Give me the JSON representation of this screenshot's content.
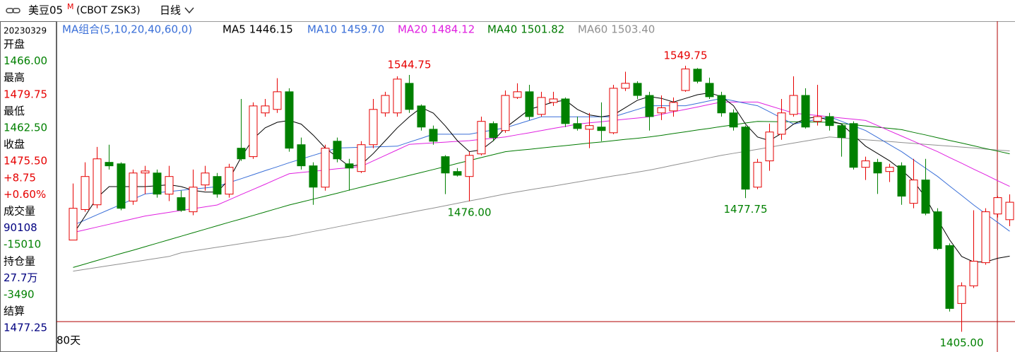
{
  "header": {
    "symbol": "美豆05",
    "flag": "M",
    "code": "(CBOT ZSK3)",
    "period": "日线"
  },
  "info_panel": {
    "date": "20230329",
    "lines": [
      {
        "text": "开盘",
        "color": "#000000"
      },
      {
        "text": "1466.00",
        "color": "#008000"
      },
      {
        "text": "最高",
        "color": "#000000"
      },
      {
        "text": "1479.75",
        "color": "#e60000"
      },
      {
        "text": "最低",
        "color": "#000000"
      },
      {
        "text": "1462.50",
        "color": "#008000"
      },
      {
        "text": "收盘",
        "color": "#000000"
      },
      {
        "text": "1475.50",
        "color": "#e60000"
      },
      {
        "text": "+8.75",
        "color": "#e60000"
      },
      {
        "text": "+0.60%",
        "color": "#e60000"
      },
      {
        "text": "成交量",
        "color": "#000000"
      },
      {
        "text": "90108",
        "color": "#000080"
      },
      {
        "text": "-15010",
        "color": "#008000"
      },
      {
        "text": "持仓量",
        "color": "#000000"
      },
      {
        "text": "27.7万",
        "color": "#000080"
      },
      {
        "text": "-3490",
        "color": "#008000"
      },
      {
        "text": "结算",
        "color": "#000000"
      },
      {
        "text": "1477.25",
        "color": "#000080"
      }
    ]
  },
  "chart_data": {
    "type": "candlestick",
    "ma_legend_title": "MA组合(5,10,20,40,60,0)",
    "range_label": "80天",
    "ylim": [
      1394,
      1574
    ],
    "up_color": "#e60000",
    "down_color": "#008000",
    "open": [
      1454.9,
      1471.5,
      1474.1,
      1497.2,
      1496.4,
      1476.1,
      1491.4,
      1491.4,
      1479.9,
      1478,
      1470.3,
      1484.9,
      1489.5,
      1479.9,
      1504.9,
      1500.3,
      1524.1,
      1526,
      1535.6,
      1506.8,
      1495.3,
      1483.7,
      1508.7,
      1496.4,
      1492.2,
      1506.8,
      1524.1,
      1524.1,
      1540.2,
      1527.9,
      1515.2,
      1500.3,
      1492.2,
      1489.5,
      1501.8,
      1518.3,
      1514.5,
      1532.5,
      1535.6,
      1523.3,
      1529.8,
      1531.7,
      1518.3,
      1515.2,
      1516.4,
      1513.3,
      1537.5,
      1540.2,
      1533.6,
      1524.1,
      1525.2,
      1536.3,
      1547.9,
      1540.2,
      1533.6,
      1524.1,
      1516.4,
      1483.7,
      1498,
      1512.5,
      1523.3,
      1533.6,
      1519.5,
      1522.1,
      1517.2,
      1518.3,
      1494.5,
      1497.2,
      1492.2,
      1495.3,
      1474.9,
      1487.6,
      1470.3,
      1451.9,
      1420.4,
      1430,
      1442.6,
      1469.1,
      1466
    ],
    "high": [
      1485.7,
      1497.2,
      1505.6,
      1506.8,
      1497.2,
      1493.3,
      1495.3,
      1493.3,
      1495.3,
      1481.8,
      1493.3,
      1495.3,
      1491.4,
      1496.4,
      1531.7,
      1529.8,
      1531.7,
      1543,
      1537.5,
      1510.7,
      1497.2,
      1506.8,
      1510.7,
      1499.1,
      1508.7,
      1531.7,
      1535.6,
      1544,
      1544.75,
      1528.7,
      1517.2,
      1501.1,
      1494.1,
      1503,
      1522.1,
      1519.5,
      1536.3,
      1540.2,
      1539.4,
      1535.6,
      1535.6,
      1532.5,
      1522.1,
      1524.1,
      1529.8,
      1539.4,
      1546.5,
      1541.3,
      1535.6,
      1533.6,
      1532.5,
      1549.75,
      1548.5,
      1543.3,
      1535.6,
      1526,
      1517.2,
      1499.1,
      1518.3,
      1531.7,
      1544,
      1537.5,
      1539.4,
      1524.1,
      1518.3,
      1519.5,
      1500.3,
      1499.1,
      1496.4,
      1497.2,
      1499.1,
      1499.1,
      1472.2,
      1453.1,
      1431.9,
      1471.1,
      1472.2,
      1478.8,
      1479.75
    ],
    "low": [
      1454.9,
      1470.3,
      1472.2,
      1493.3,
      1471.1,
      1474.1,
      1479.9,
      1478,
      1476.1,
      1470.3,
      1468.4,
      1481.8,
      1478,
      1478,
      1498,
      1499.1,
      1522.1,
      1524.1,
      1503,
      1493.3,
      1474.1,
      1481.8,
      1497.2,
      1481.8,
      1491.4,
      1504.9,
      1522.1,
      1522.1,
      1524.1,
      1514.5,
      1506.8,
      1479.9,
      1489.5,
      1476,
      1501,
      1508.7,
      1513.3,
      1531.7,
      1520.2,
      1522.1,
      1527.9,
      1516.4,
      1514.5,
      1504.9,
      1508.7,
      1512.5,
      1536,
      1531.7,
      1514.5,
      1520.2,
      1522.1,
      1535.6,
      1540.2,
      1531.7,
      1522.1,
      1514.5,
      1477.75,
      1482.6,
      1492.6,
      1509.5,
      1522.1,
      1515.6,
      1517.2,
      1514.5,
      1500.3,
      1493.3,
      1487.6,
      1480,
      1486.5,
      1474.1,
      1472.2,
      1468.4,
      1449.5,
      1416,
      1405,
      1428.8,
      1441.5,
      1467.2,
      1462.5
    ],
    "close": [
      1472.2,
      1489.5,
      1499.1,
      1495.3,
      1472.2,
      1491.4,
      1492.5,
      1479.9,
      1489.5,
      1471.1,
      1483.7,
      1491.4,
      1479.9,
      1494.5,
      1499.1,
      1527.9,
      1527.9,
      1535.6,
      1504.9,
      1495.3,
      1483.7,
      1504.9,
      1499.1,
      1494.1,
      1506.8,
      1526,
      1533.6,
      1542.5,
      1526,
      1516.4,
      1508.7,
      1491.4,
      1490.2,
      1501,
      1519.5,
      1510.7,
      1533.6,
      1535.6,
      1522.1,
      1532.5,
      1531.7,
      1518.3,
      1515.6,
      1517.2,
      1514.5,
      1537.5,
      1540.2,
      1533.6,
      1522.1,
      1526.9,
      1529.8,
      1548,
      1541.3,
      1532.9,
      1524.1,
      1516.4,
      1482.6,
      1497.2,
      1513.7,
      1524.1,
      1533.6,
      1516.4,
      1522.1,
      1517.2,
      1510.7,
      1494.5,
      1498,
      1491.4,
      1494.5,
      1478.8,
      1487.6,
      1469.5,
      1450.3,
      1417.7,
      1430,
      1443.4,
      1470.3,
      1478,
      1475.5
    ],
    "high_labels": [
      null,
      null,
      null,
      null,
      null,
      null,
      null,
      null,
      null,
      null,
      null,
      null,
      null,
      null,
      null,
      null,
      null,
      null,
      null,
      null,
      null,
      null,
      null,
      null,
      null,
      null,
      null,
      null,
      "1544.75",
      null,
      null,
      null,
      null,
      null,
      null,
      null,
      null,
      null,
      null,
      null,
      null,
      null,
      null,
      null,
      null,
      null,
      null,
      null,
      null,
      null,
      null,
      "1549.75",
      null,
      null,
      null,
      null,
      null,
      null,
      null,
      null,
      null,
      null,
      null,
      null,
      null,
      null,
      null,
      null,
      null,
      null,
      null,
      null,
      null,
      null,
      null,
      null,
      null,
      null,
      null
    ],
    "low_labels": [
      null,
      null,
      null,
      null,
      null,
      null,
      null,
      null,
      null,
      null,
      null,
      null,
      null,
      null,
      null,
      null,
      null,
      null,
      null,
      null,
      null,
      null,
      null,
      null,
      null,
      null,
      null,
      null,
      null,
      null,
      null,
      null,
      null,
      "1476.00",
      null,
      null,
      null,
      null,
      null,
      null,
      null,
      null,
      null,
      null,
      null,
      null,
      null,
      null,
      null,
      null,
      null,
      null,
      null,
      null,
      null,
      null,
      "1477.75",
      null,
      null,
      null,
      null,
      null,
      null,
      null,
      null,
      null,
      null,
      null,
      null,
      null,
      null,
      null,
      null,
      null,
      "1405.00",
      null,
      null,
      null,
      null
    ],
    "series": [
      {
        "name": "MA5",
        "color": "#000000",
        "value_label": "1446.15",
        "values": [
          1458,
          1468,
          1478,
          1484,
          1484,
          1484,
          1484,
          1484.5,
          1485,
          1484,
          1482,
          1481,
          1481,
          1488,
          1500,
          1510,
          1516,
          1519,
          1520,
          1518,
          1512,
          1505,
          1500,
          1495,
          1496,
          1502,
          1509,
          1516,
          1522,
          1527,
          1524,
          1517,
          1509,
          1503,
          1504,
          1509,
          1516,
          1521,
          1526,
          1528,
          1530,
          1531,
          1526,
          1523,
          1522,
          1523,
          1527,
          1531,
          1533,
          1532,
          1530,
          1532,
          1534,
          1535,
          1533,
          1528,
          1518,
          1511,
          1509,
          1513,
          1518,
          1521,
          1522,
          1520,
          1518,
          1512,
          1506,
          1502,
          1498,
          1493,
          1487,
          1478,
          1466,
          1455,
          1446,
          1443,
          1443,
          1445,
          1446.15
        ]
      },
      {
        "name": "MA10",
        "color": "#3a6fd8",
        "value_label": "1459.70",
        "values": [
          1463,
          1465.8,
          1468.7,
          1471.5,
          1474.3,
          1477.2,
          1480,
          1480.7,
          1481.3,
          1482,
          1482.7,
          1483.3,
          1484,
          1486.2,
          1488.3,
          1490.5,
          1492.7,
          1494.8,
          1497,
          1499,
          1501,
          1503,
          1505,
          1505.2,
          1505.4,
          1505.6,
          1505.8,
          1506,
          1508.2,
          1510.3,
          1512.5,
          1512.5,
          1512.5,
          1512.5,
          1513.7,
          1514.8,
          1516,
          1518,
          1520,
          1522,
          1522,
          1522,
          1522,
          1522,
          1522,
          1522,
          1524,
          1526,
          1528,
          1528,
          1528,
          1528,
          1529.3,
          1530.7,
          1532,
          1530.7,
          1529.3,
          1528,
          1524.7,
          1521.3,
          1518,
          1519.3,
          1520.7,
          1522,
          1519.5,
          1517,
          1514.5,
          1510.7,
          1506.8,
          1503,
          1498.5,
          1494,
          1489.5,
          1484.3,
          1479.2,
          1474,
          1469.2,
          1464.5,
          1459.7
        ]
      },
      {
        "name": "MA20",
        "color": "#e020e0",
        "value_label": "1484.12",
        "values": [
          1459,
          1460.5,
          1462,
          1463.5,
          1465,
          1466.5,
          1468,
          1469,
          1470,
          1471,
          1472,
          1473,
          1474,
          1476.8,
          1479.7,
          1482.5,
          1485.3,
          1488.2,
          1491,
          1491.7,
          1492.3,
          1493,
          1493.7,
          1494.3,
          1495,
          1498,
          1501,
          1504,
          1507,
          1507.4,
          1507.8,
          1508.2,
          1508.6,
          1509,
          1509.7,
          1510.3,
          1511,
          1512.2,
          1513.3,
          1514.5,
          1515.7,
          1516.8,
          1518,
          1518.7,
          1519.3,
          1520,
          1520.7,
          1521.3,
          1522,
          1523.3,
          1524.7,
          1526,
          1527.3,
          1528.7,
          1530,
          1530,
          1530,
          1530,
          1528,
          1526,
          1524,
          1523.3,
          1522.7,
          1522,
          1521.3,
          1520.7,
          1520,
          1517.2,
          1514.3,
          1511.5,
          1508.7,
          1505.8,
          1503,
          1499.8,
          1496.7,
          1493.5,
          1490.4,
          1487.2,
          1484.12
        ]
      },
      {
        "name": "MA40",
        "color": "#007a00",
        "value_label": "1501.82",
        "values": [
          1440,
          1441.9,
          1443.8,
          1445.7,
          1447.6,
          1449.4,
          1451.3,
          1453.2,
          1455.1,
          1457,
          1458.9,
          1460.8,
          1462.7,
          1464.6,
          1466.4,
          1468.3,
          1470.2,
          1472.1,
          1474,
          1475.6,
          1477.2,
          1478.8,
          1480.4,
          1482.1,
          1483.7,
          1485.3,
          1486.9,
          1488.5,
          1490.1,
          1491.7,
          1493.3,
          1494.9,
          1496.6,
          1498.2,
          1499.8,
          1501.4,
          1503,
          1503.7,
          1504.3,
          1505,
          1505.7,
          1506.3,
          1507,
          1507.7,
          1508.3,
          1509,
          1509.7,
          1510.3,
          1511,
          1511.9,
          1512.9,
          1513.8,
          1514.8,
          1515.7,
          1516.7,
          1517.6,
          1518.6,
          1519.5,
          1519.4,
          1519.3,
          1519.3,
          1519.2,
          1519.1,
          1519,
          1518.3,
          1517.7,
          1517,
          1516.3,
          1515.7,
          1515,
          1513.5,
          1512.1,
          1510.6,
          1509.1,
          1507.7,
          1506.2,
          1504.7,
          1503.3,
          1501.82
        ]
      },
      {
        "name": "MA60",
        "color": "#909090",
        "value_label": "1503.40",
        "values": [
          1438,
          1439,
          1440,
          1441,
          1442,
          1443,
          1444,
          1445,
          1446,
          1448,
          1449,
          1450,
          1451,
          1452,
          1453,
          1454,
          1455,
          1456,
          1457,
          1458.3,
          1459.6,
          1460.8,
          1462.1,
          1463.4,
          1464.7,
          1465.9,
          1467.2,
          1468.5,
          1469.8,
          1471.1,
          1472.3,
          1473.6,
          1474.9,
          1476.2,
          1477.4,
          1478.7,
          1480,
          1481.1,
          1482.2,
          1483.3,
          1484.3,
          1485.4,
          1486.5,
          1487.6,
          1488.7,
          1489.8,
          1490.8,
          1491.9,
          1493,
          1494.3,
          1495.7,
          1497,
          1498.3,
          1499.7,
          1501,
          1502.1,
          1503.2,
          1504.3,
          1505.4,
          1506.6,
          1507.7,
          1508.8,
          1509.9,
          1511,
          1510.5,
          1510,
          1509.5,
          1509,
          1508.5,
          1508,
          1507.5,
          1507,
          1506.5,
          1506,
          1505.5,
          1505,
          1504.4,
          1503.9,
          1503.4
        ]
      }
    ]
  }
}
